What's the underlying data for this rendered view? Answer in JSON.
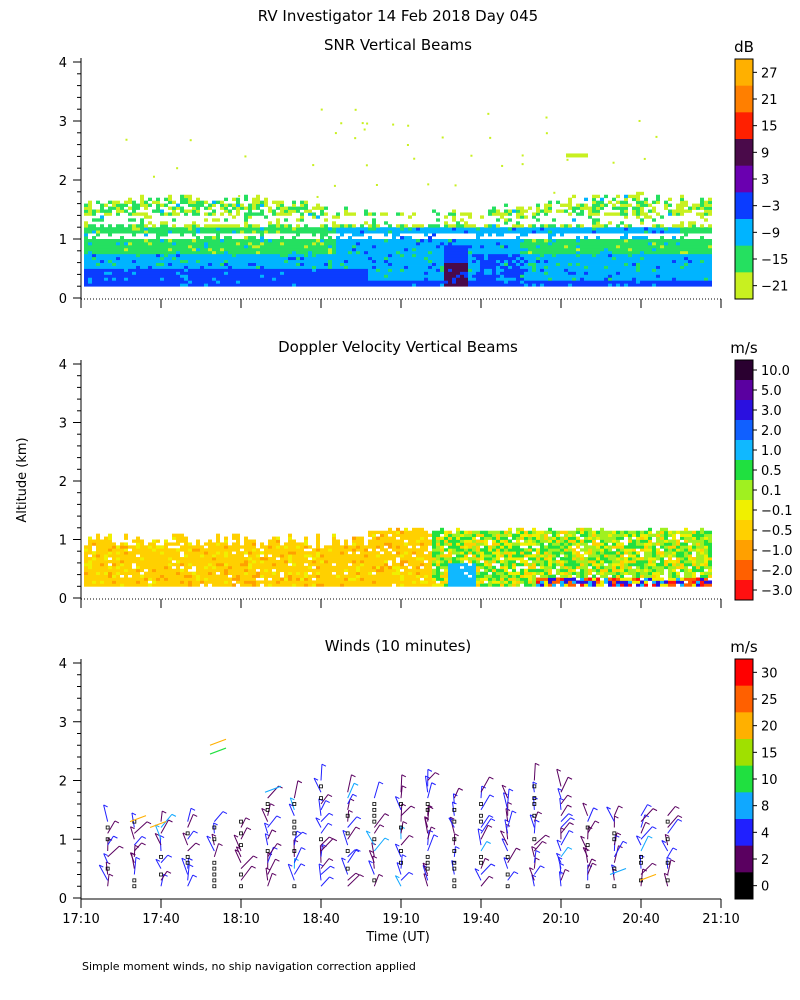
{
  "figure": {
    "title": "RV Investigator  14 Feb 2018 Day 045",
    "ylabel": "Altitude (km)",
    "xlabel": "Time (UT)",
    "footnote": "Simple moment winds, no ship navigation correction applied"
  },
  "chart_data": [
    {
      "type": "heatmap",
      "title": "SNR Vertical Beams",
      "x_ticks": [
        "17:10",
        "17:40",
        "18:10",
        "18:40",
        "19:10",
        "19:40",
        "20:10",
        "20:40",
        "21:10"
      ],
      "y_ticks": [
        "0",
        "1",
        "2",
        "3",
        "4"
      ],
      "ylim": [
        0,
        4
      ],
      "colorbar": {
        "unit": "dB",
        "labels": [
          "27",
          "21",
          "15",
          "9",
          "3",
          "−3",
          "−9",
          "−15",
          "−21"
        ],
        "colors": [
          "#ffb000",
          "#ff7f00",
          "#ff2000",
          "#4a0a4a",
          "#6a00b0",
          "#0b3cff",
          "#00b4ff",
          "#25e060",
          "#c8f020"
        ]
      }
    },
    {
      "type": "heatmap",
      "title": "Doppler Velocity Vertical Beams",
      "x_ticks": [
        "17:10",
        "17:40",
        "18:10",
        "18:40",
        "19:10",
        "19:40",
        "20:10",
        "20:40",
        "21:10"
      ],
      "y_ticks": [
        "0",
        "1",
        "2",
        "3",
        "4"
      ],
      "ylim": [
        0,
        4
      ],
      "colorbar": {
        "unit": "m/s",
        "labels": [
          "10.0",
          "5.0",
          "3.0",
          "2.0",
          "1.0",
          "0.5",
          "0.1",
          "−0.1",
          "−0.5",
          "−1.0",
          "−2.0",
          "−3.0"
        ],
        "colors": [
          "#2a0030",
          "#5a00a0",
          "#2a10e0",
          "#1060ff",
          "#10b8ff",
          "#20e040",
          "#a0f020",
          "#f0f000",
          "#ffd000",
          "#ffa000",
          "#ff6000",
          "#ff1010"
        ]
      }
    },
    {
      "type": "scatter",
      "title": "Winds (10 minutes)",
      "x_ticks": [
        "17:10",
        "17:40",
        "18:10",
        "18:40",
        "19:10",
        "19:40",
        "20:10",
        "20:40",
        "21:10"
      ],
      "y_ticks": [
        "0",
        "1",
        "2",
        "3",
        "4"
      ],
      "ylim": [
        0,
        4
      ],
      "colorbar": {
        "unit": "m/s",
        "labels": [
          "30",
          "25",
          "20",
          "15",
          "10",
          "8",
          "4",
          "2",
          "0"
        ],
        "colors": [
          "#ff0000",
          "#ff6000",
          "#ffb000",
          "#a0e000",
          "#20e040",
          "#10a8ff",
          "#2020ff",
          "#5a0060",
          "#000000"
        ]
      }
    }
  ]
}
